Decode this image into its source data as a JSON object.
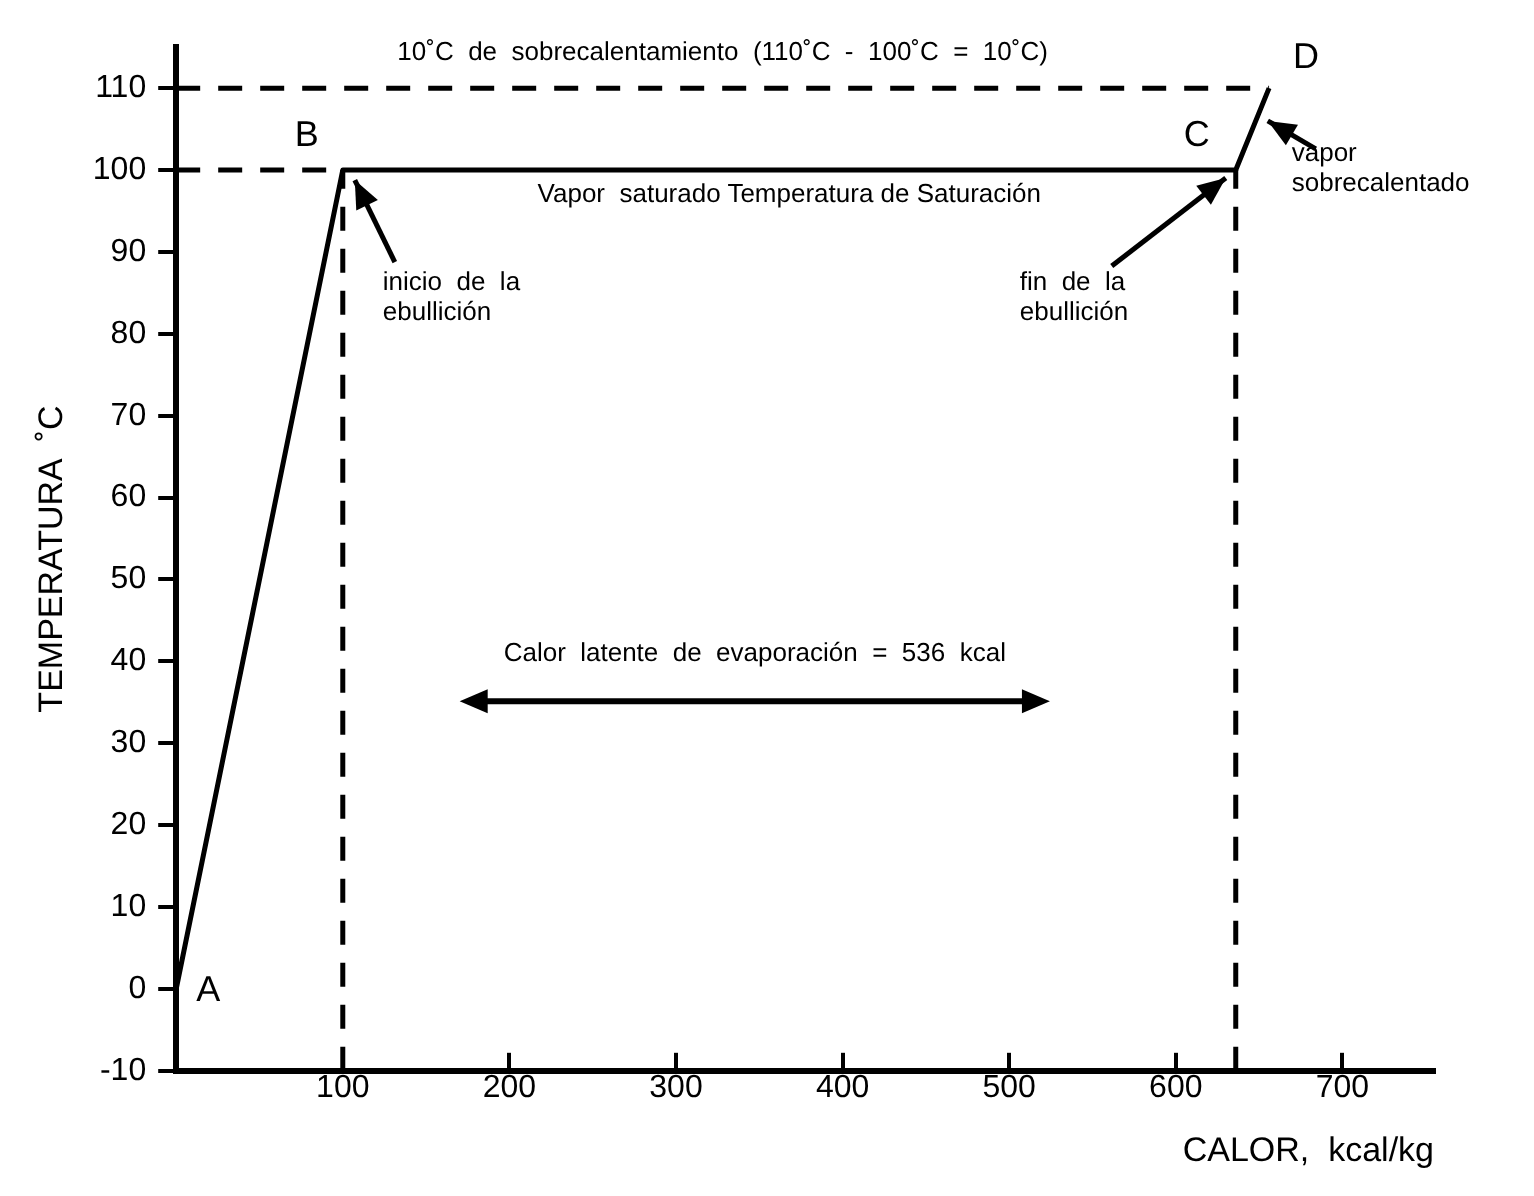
{
  "chart_data": {
    "type": "line",
    "xlabel": "CALOR,  kcal/kg",
    "ylabel": "TEMPERATURA  ˚C",
    "xlim": [
      0,
      755
    ],
    "ylim": [
      -10,
      115
    ],
    "xticks": [
      100,
      200,
      300,
      400,
      500,
      600,
      700
    ],
    "yticks": [
      -10,
      0,
      10,
      20,
      30,
      40,
      50,
      60,
      70,
      80,
      90,
      100,
      110
    ],
    "grid": false,
    "legend": false,
    "marker": "none",
    "series": [
      {
        "color": "#000000",
        "line_style": "solid",
        "x": [
          0,
          100,
          636,
          656
        ],
        "values": [
          0,
          100,
          100,
          110
        ]
      },
      {
        "color": "#000000",
        "line_style": "dashed",
        "x": [
          0,
          656
        ],
        "values": [
          110,
          110
        ]
      },
      {
        "color": "#000000",
        "line_style": "dashed",
        "x": [
          0,
          100
        ],
        "values": [
          100,
          100
        ]
      },
      {
        "color": "#000000",
        "line_style": "dashed",
        "x": [
          100,
          100
        ],
        "values": [
          -10,
          100
        ]
      },
      {
        "color": "#000000",
        "line_style": "dashed",
        "x": [
          636,
          636
        ],
        "values": [
          -10,
          100
        ]
      }
    ],
    "annotations": [
      {
        "text": "A",
        "x": 0,
        "y": 0
      },
      {
        "text": "B",
        "x": 100,
        "y": 100
      },
      {
        "text": "C",
        "x": 636,
        "y": 100
      },
      {
        "text": "D",
        "x": 656,
        "y": 110
      },
      {
        "text": "10˚C  de  sobrecalentamiento  (110˚C  -  100˚C  =  10˚C)",
        "x": 328,
        "y": 110
      },
      {
        "text": "Vapor  saturado Temperatura de Saturación",
        "x": 368,
        "y": 100
      },
      {
        "text": "inicio  de  la\nebullición",
        "x": 100,
        "y": 100
      },
      {
        "text": "fin  de  la\nebullición",
        "x": 636,
        "y": 100
      },
      {
        "text": "vapor\nsobrecalentado",
        "x": 648,
        "y": 106
      },
      "Calor  latente  de  evaporación  =  536  kcal"
    ]
  }
}
